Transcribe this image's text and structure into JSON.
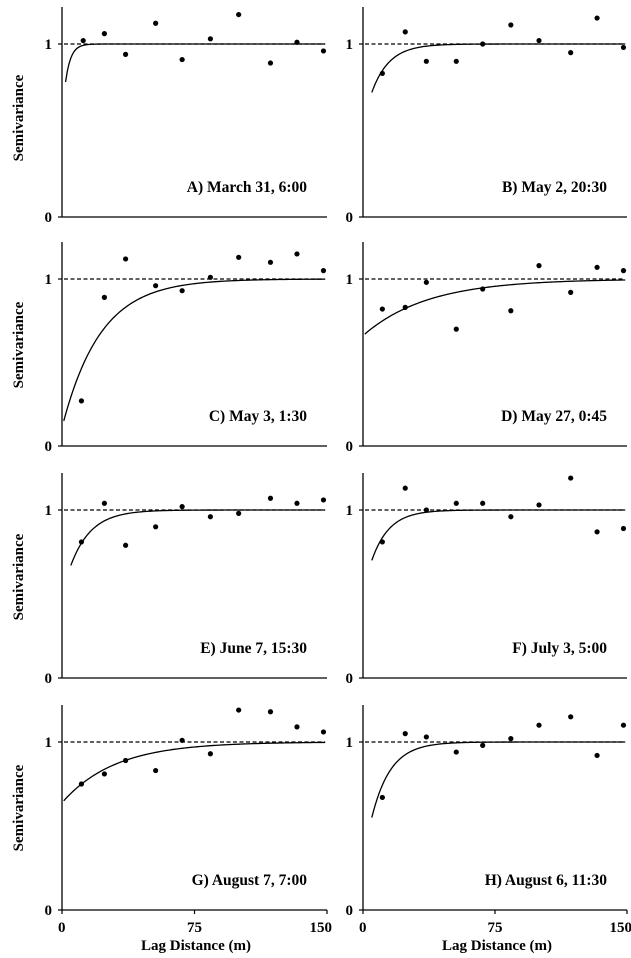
{
  "figure": {
    "ylabel": "Semivariance",
    "xlabel": "Lag Distance (m)"
  },
  "chart_data": [
    {
      "type": "scatter",
      "title": "A) March 31, 6:00",
      "xlim": [
        0,
        150
      ],
      "ylim": [
        0,
        1.2
      ],
      "y_ticks": [
        "0",
        "1"
      ],
      "points": [
        [
          12,
          1.02
        ],
        [
          24,
          1.06
        ],
        [
          36,
          0.94
        ],
        [
          53,
          1.12
        ],
        [
          68,
          0.91
        ],
        [
          84,
          1.03
        ],
        [
          100,
          1.17
        ],
        [
          118,
          0.89
        ],
        [
          133,
          1.01
        ],
        [
          148,
          0.96
        ]
      ],
      "sill": 1.0,
      "model": {
        "nugget": 0.78,
        "sill": 1.0,
        "range": 9,
        "x_start": 2
      }
    },
    {
      "type": "scatter",
      "title": "B) May 2, 20:30",
      "xlim": [
        0,
        150
      ],
      "ylim": [
        0,
        1.2
      ],
      "y_ticks": [
        "0",
        "1"
      ],
      "points": [
        [
          11,
          0.83
        ],
        [
          24,
          1.07
        ],
        [
          36,
          0.9
        ],
        [
          53,
          0.9
        ],
        [
          68,
          1.0
        ],
        [
          84,
          1.11
        ],
        [
          100,
          1.02
        ],
        [
          118,
          0.95
        ],
        [
          133,
          1.15
        ],
        [
          148,
          0.98
        ]
      ],
      "sill": 1.0,
      "model": {
        "nugget": 0.72,
        "sill": 1.0,
        "range": 30,
        "x_start": 5
      }
    },
    {
      "type": "scatter",
      "title": "C) May 3, 1:30",
      "xlim": [
        0,
        150
      ],
      "ylim": [
        0,
        1.2
      ],
      "y_ticks": [
        "0",
        "1"
      ],
      "points": [
        [
          11,
          0.27
        ],
        [
          24,
          0.89
        ],
        [
          36,
          1.12
        ],
        [
          53,
          0.96
        ],
        [
          68,
          0.93
        ],
        [
          84,
          1.01
        ],
        [
          100,
          1.13
        ],
        [
          118,
          1.1
        ],
        [
          133,
          1.15
        ],
        [
          148,
          1.05
        ]
      ],
      "sill": 1.0,
      "model": {
        "nugget": 0.15,
        "sill": 1.0,
        "range": 65,
        "x_start": 1
      }
    },
    {
      "type": "scatter",
      "title": "D) May 27, 0:45",
      "xlim": [
        0,
        150
      ],
      "ylim": [
        0,
        1.2
      ],
      "y_ticks": [
        "0",
        "1"
      ],
      "points": [
        [
          11,
          0.82
        ],
        [
          24,
          0.83
        ],
        [
          36,
          0.98
        ],
        [
          53,
          0.7
        ],
        [
          68,
          0.94
        ],
        [
          84,
          0.81
        ],
        [
          100,
          1.08
        ],
        [
          118,
          0.92
        ],
        [
          133,
          1.07
        ],
        [
          148,
          1.05
        ]
      ],
      "sill": 1.0,
      "model": {
        "nugget": 0.67,
        "sill": 1.0,
        "range": 110,
        "x_start": 1
      }
    },
    {
      "type": "scatter",
      "title": "E) June 7, 15:30",
      "xlim": [
        0,
        150
      ],
      "ylim": [
        0,
        1.2
      ],
      "y_ticks": [
        "0",
        "1"
      ],
      "points": [
        [
          11,
          0.81
        ],
        [
          24,
          1.04
        ],
        [
          36,
          0.79
        ],
        [
          53,
          0.9
        ],
        [
          68,
          1.02
        ],
        [
          84,
          0.96
        ],
        [
          100,
          0.98
        ],
        [
          118,
          1.07
        ],
        [
          133,
          1.04
        ],
        [
          148,
          1.06
        ]
      ],
      "sill": 1.0,
      "model": {
        "nugget": 0.67,
        "sill": 1.0,
        "range": 35,
        "x_start": 5
      }
    },
    {
      "type": "scatter",
      "title": "F) July 3, 5:00",
      "xlim": [
        0,
        150
      ],
      "ylim": [
        0,
        1.2
      ],
      "y_ticks": [
        "0",
        "1"
      ],
      "points": [
        [
          11,
          0.81
        ],
        [
          24,
          1.13
        ],
        [
          36,
          1.0
        ],
        [
          53,
          1.04
        ],
        [
          68,
          1.04
        ],
        [
          84,
          0.96
        ],
        [
          100,
          1.03
        ],
        [
          118,
          1.19
        ],
        [
          133,
          0.87
        ],
        [
          148,
          0.89
        ]
      ],
      "sill": 1.0,
      "model": {
        "nugget": 0.7,
        "sill": 1.0,
        "range": 30,
        "x_start": 5
      }
    },
    {
      "type": "scatter",
      "title": "G) August 7, 7:00",
      "xlim": [
        0,
        150
      ],
      "ylim": [
        0,
        1.2
      ],
      "y_ticks": [
        "0",
        "1"
      ],
      "points": [
        [
          11,
          0.75
        ],
        [
          24,
          0.81
        ],
        [
          36,
          0.89
        ],
        [
          53,
          0.83
        ],
        [
          68,
          1.01
        ],
        [
          84,
          0.93
        ],
        [
          100,
          1.19
        ],
        [
          118,
          1.18
        ],
        [
          133,
          1.09
        ],
        [
          148,
          1.06
        ]
      ],
      "sill": 1.0,
      "model": {
        "nugget": 0.65,
        "sill": 1.0,
        "range": 90,
        "x_start": 1
      }
    },
    {
      "type": "scatter",
      "title": "H) August 6, 11:30",
      "xlim": [
        0,
        150
      ],
      "ylim": [
        0,
        1.2
      ],
      "y_ticks": [
        "0",
        "1"
      ],
      "points": [
        [
          11,
          0.67
        ],
        [
          24,
          1.05
        ],
        [
          36,
          1.03
        ],
        [
          53,
          0.94
        ],
        [
          68,
          0.98
        ],
        [
          84,
          1.02
        ],
        [
          100,
          1.1
        ],
        [
          118,
          1.15
        ],
        [
          133,
          0.92
        ],
        [
          148,
          1.1
        ]
      ],
      "sill": 1.0,
      "model": {
        "nugget": 0.55,
        "sill": 1.0,
        "range": 32,
        "x_start": 5
      }
    }
  ],
  "x_ticks": [
    {
      "value": 0,
      "label": "0"
    },
    {
      "value": 75,
      "label": "75"
    },
    {
      "value": 150,
      "label": "150"
    }
  ]
}
